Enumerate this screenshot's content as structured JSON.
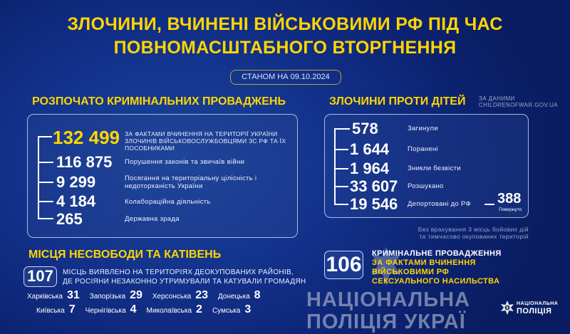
{
  "header": {
    "title_line1": "ЗЛОЧИНИ, ВЧИНЕНІ ВІЙСЬКОВИМИ РФ ПІД ЧАС",
    "title_line2": "ПОВНОМАСШТАБНОГО ВТОРГНЕННЯ",
    "date_label": "СТАНОМ НА 09.10.2024"
  },
  "criminal": {
    "heading": "РОЗПОЧАТО КРИМІНАЛЬНИХ ПРОВАДЖЕНЬ",
    "items": [
      {
        "value": "132 499",
        "label": "ЗА ФАКТАМИ ВЧИНЕННЯ НА ТЕРИТОРІЇ УКРАЇНИ ЗЛОЧИНІВ ВІЙСЬКОВОСЛУЖБОВЦЯМИ ЗС РФ ТА ЇХ ПОСОБНИКАМИ"
      },
      {
        "value": "116 875",
        "label": "Порушення законів та звичаїв війни"
      },
      {
        "value": "9 299",
        "label": "Посягання на територіальну цілісність і недоторканість України"
      },
      {
        "value": "4 184",
        "label": "Колабораційна діяльність"
      },
      {
        "value": "265",
        "label": "Державна зрада"
      }
    ]
  },
  "children": {
    "heading": "ЗЛОЧИНИ ПРОТИ ДІТЕЙ",
    "source_line1": "ЗА ДАНИМИ",
    "source_line2": "CHILDRENOFWAR.GOV.UA",
    "items": [
      {
        "value": "578",
        "label": "Загинули"
      },
      {
        "value": "1 644",
        "label": "Поранені"
      },
      {
        "value": "1 964",
        "label": "Зникли безвісти"
      },
      {
        "value": "33 607",
        "label": "Розшукано"
      },
      {
        "value": "19 546",
        "label": "Депортовані до РФ"
      }
    ],
    "returned_value": "388",
    "returned_label": "Повернуто",
    "note_line1": "Без врахування 3 місць бойових дій",
    "note_line2": "та тимчасово окупованих територій"
  },
  "detention": {
    "heading": "МІСЦЯ НЕСВОБОДИ ТА КАТІВЕНЬ",
    "count": "107",
    "text_line1": "МІСЦЬ ВИЯВЛЕНО НА ТЕРИТОРІЯХ ДЕОКУПОВАНИХ РАЙОНІВ,",
    "text_line2": "ДЕ РОСІЯНИ НЕЗАКОННО УТРИМУВАЛИ ТА КАТУВАЛИ ГРОМАДЯН",
    "regions": [
      {
        "name": "Харківська",
        "value": "31"
      },
      {
        "name": "Запорізька",
        "value": "29"
      },
      {
        "name": "Херсонська",
        "value": "23"
      },
      {
        "name": "Донецька",
        "value": "8"
      },
      {
        "name": "Київська",
        "value": "7"
      },
      {
        "name": "Чернігівська",
        "value": "4"
      },
      {
        "name": "Миколаївська",
        "value": "2"
      },
      {
        "name": "Сумська",
        "value": "3"
      }
    ]
  },
  "sexual": {
    "count": "106",
    "line1": "КРИМІНАЛЬНЕ ПРОВАДЖЕННЯ",
    "line2": "ЗА ФАКТАМИ ВЧИНЕННЯ",
    "line3": "ВІЙСЬКОВИМИ РФ",
    "line4": "СЕКСУАЛЬНОГО НАСИЛЬСТВА"
  },
  "watermark": {
    "line1": "НАЦІОНАЛЬНА",
    "line2": "ПОЛІЦІЯ УКРАЇ"
  },
  "logo": {
    "line1": "НАЦІОНАЛЬНА",
    "line2": "ПОЛІЦІЯ"
  },
  "colors": {
    "accent": "#FFD500",
    "background": "#12318a"
  }
}
